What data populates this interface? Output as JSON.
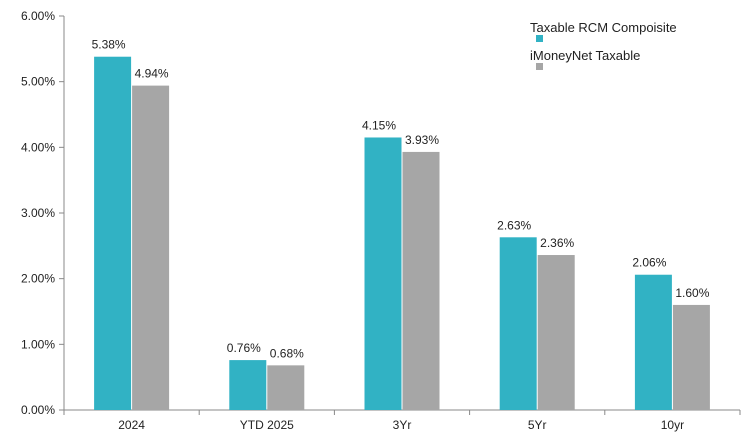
{
  "chart_data": {
    "type": "bar",
    "categories": [
      "2024",
      "YTD 2025",
      "3Yr",
      "5Yr",
      "10yr"
    ],
    "series": [
      {
        "name": "Taxable RCM Compoisite",
        "values": [
          5.38,
          0.76,
          4.15,
          2.63,
          2.06
        ],
        "labels": [
          "5.38%",
          "0.76%",
          "4.15%",
          "2.63%",
          "2.06%"
        ],
        "color": "#31B2C4"
      },
      {
        "name": "iMoneyNet Taxable",
        "values": [
          4.94,
          0.68,
          3.93,
          2.36,
          1.6
        ],
        "labels": [
          "4.94%",
          "0.68%",
          "3.93%",
          "2.36%",
          "1.60%"
        ],
        "color": "#A6A6A6"
      }
    ],
    "ylim": [
      0,
      6
    ],
    "yticks": [
      0,
      1,
      2,
      3,
      4,
      5,
      6
    ],
    "ytick_labels": [
      "0.00%",
      "1.00%",
      "2.00%",
      "3.00%",
      "4.00%",
      "5.00%",
      "6.00%"
    ],
    "legend_position": "top-right",
    "grid": false
  }
}
